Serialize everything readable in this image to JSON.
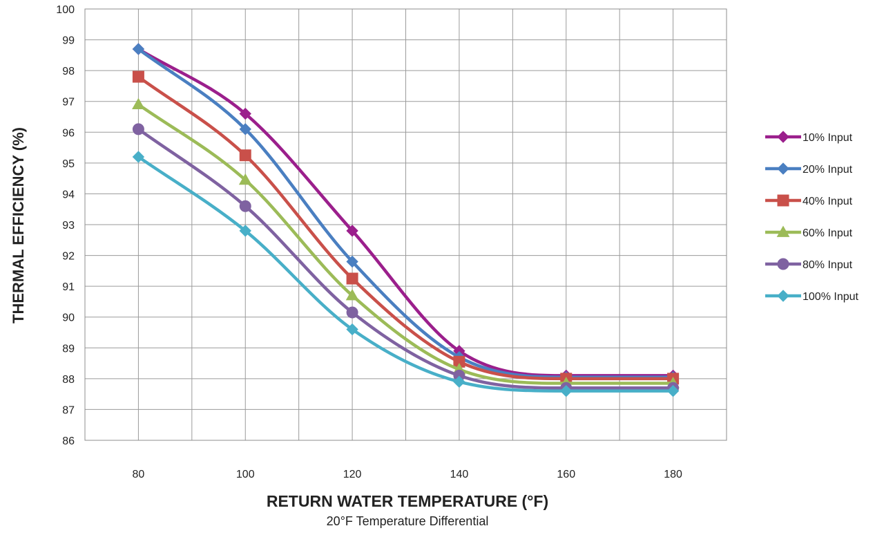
{
  "chart_data": {
    "type": "line",
    "x": [
      80,
      100,
      120,
      140,
      160,
      180
    ],
    "xticks": [
      "80",
      "100",
      "120",
      "140",
      "160",
      "180"
    ],
    "xlim": [
      70,
      190
    ],
    "ylim": [
      86,
      100
    ],
    "yticks": [
      "86",
      "87",
      "88",
      "89",
      "90",
      "91",
      "92",
      "93",
      "94",
      "95",
      "96",
      "97",
      "98",
      "99",
      "100"
    ],
    "xlabel": "RETURN WATER TEMPERATURE (°F)",
    "subtitle": "20°F Temperature Differential",
    "ylabel": "THERMAL EFFICIENCY (%)",
    "grid": true,
    "legend_position": "right",
    "series": [
      {
        "name": "10% Input",
        "color": "#9b1f8c",
        "marker": "diamond",
        "values": [
          98.7,
          96.6,
          92.8,
          88.9,
          88.1,
          88.1
        ]
      },
      {
        "name": "20% Input",
        "color": "#4a7fc1",
        "marker": "diamond",
        "values": [
          98.7,
          96.1,
          91.8,
          88.7,
          88.05,
          88.05
        ]
      },
      {
        "name": "40% Input",
        "color": "#c9504a",
        "marker": "square",
        "values": [
          97.8,
          95.25,
          91.25,
          88.55,
          88.0,
          88.0
        ]
      },
      {
        "name": "60% Input",
        "color": "#9cbb58",
        "marker": "triangle",
        "values": [
          96.9,
          94.45,
          90.7,
          88.3,
          87.85,
          87.85
        ]
      },
      {
        "name": "80% Input",
        "color": "#7f62a1",
        "marker": "circle",
        "values": [
          96.1,
          93.6,
          90.15,
          88.1,
          87.7,
          87.7
        ]
      },
      {
        "name": "100% Input",
        "color": "#48afc8",
        "marker": "diamond",
        "values": [
          95.2,
          92.8,
          89.6,
          87.9,
          87.6,
          87.6
        ]
      }
    ]
  }
}
